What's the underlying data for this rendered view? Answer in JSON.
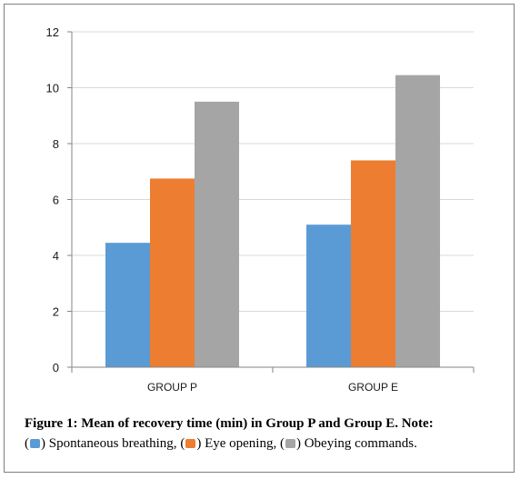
{
  "chart_data": {
    "type": "bar",
    "categories": [
      "GROUP P",
      "GROUP E"
    ],
    "series": [
      {
        "name": "Spontaneous breathing",
        "values": [
          4.45,
          5.1
        ],
        "color": "#5b9bd5"
      },
      {
        "name": "Eye opening",
        "values": [
          6.75,
          7.4
        ],
        "color": "#ed7d31"
      },
      {
        "name": "Obeying commands",
        "values": [
          9.5,
          10.45
        ],
        "color": "#a5a5a5"
      }
    ],
    "ylim": [
      0,
      12
    ],
    "yticks": [
      "0",
      "2",
      "4",
      "6",
      "8",
      "10",
      "12"
    ],
    "grid": true,
    "legend": "caption"
  },
  "caption": {
    "title": "Figure 1: Mean of recovery time (min) in Group P and Group E.",
    "note_label": "Note:",
    "open_paren": "(",
    "close_paren": ")",
    "legend_items": [
      {
        "label": "Spontaneous breathing,",
        "color": "#5b9bd5"
      },
      {
        "label": "Eye opening,",
        "color": "#ed7d31"
      },
      {
        "label": "Obeying commands.",
        "color": "#a5a5a5"
      }
    ]
  }
}
